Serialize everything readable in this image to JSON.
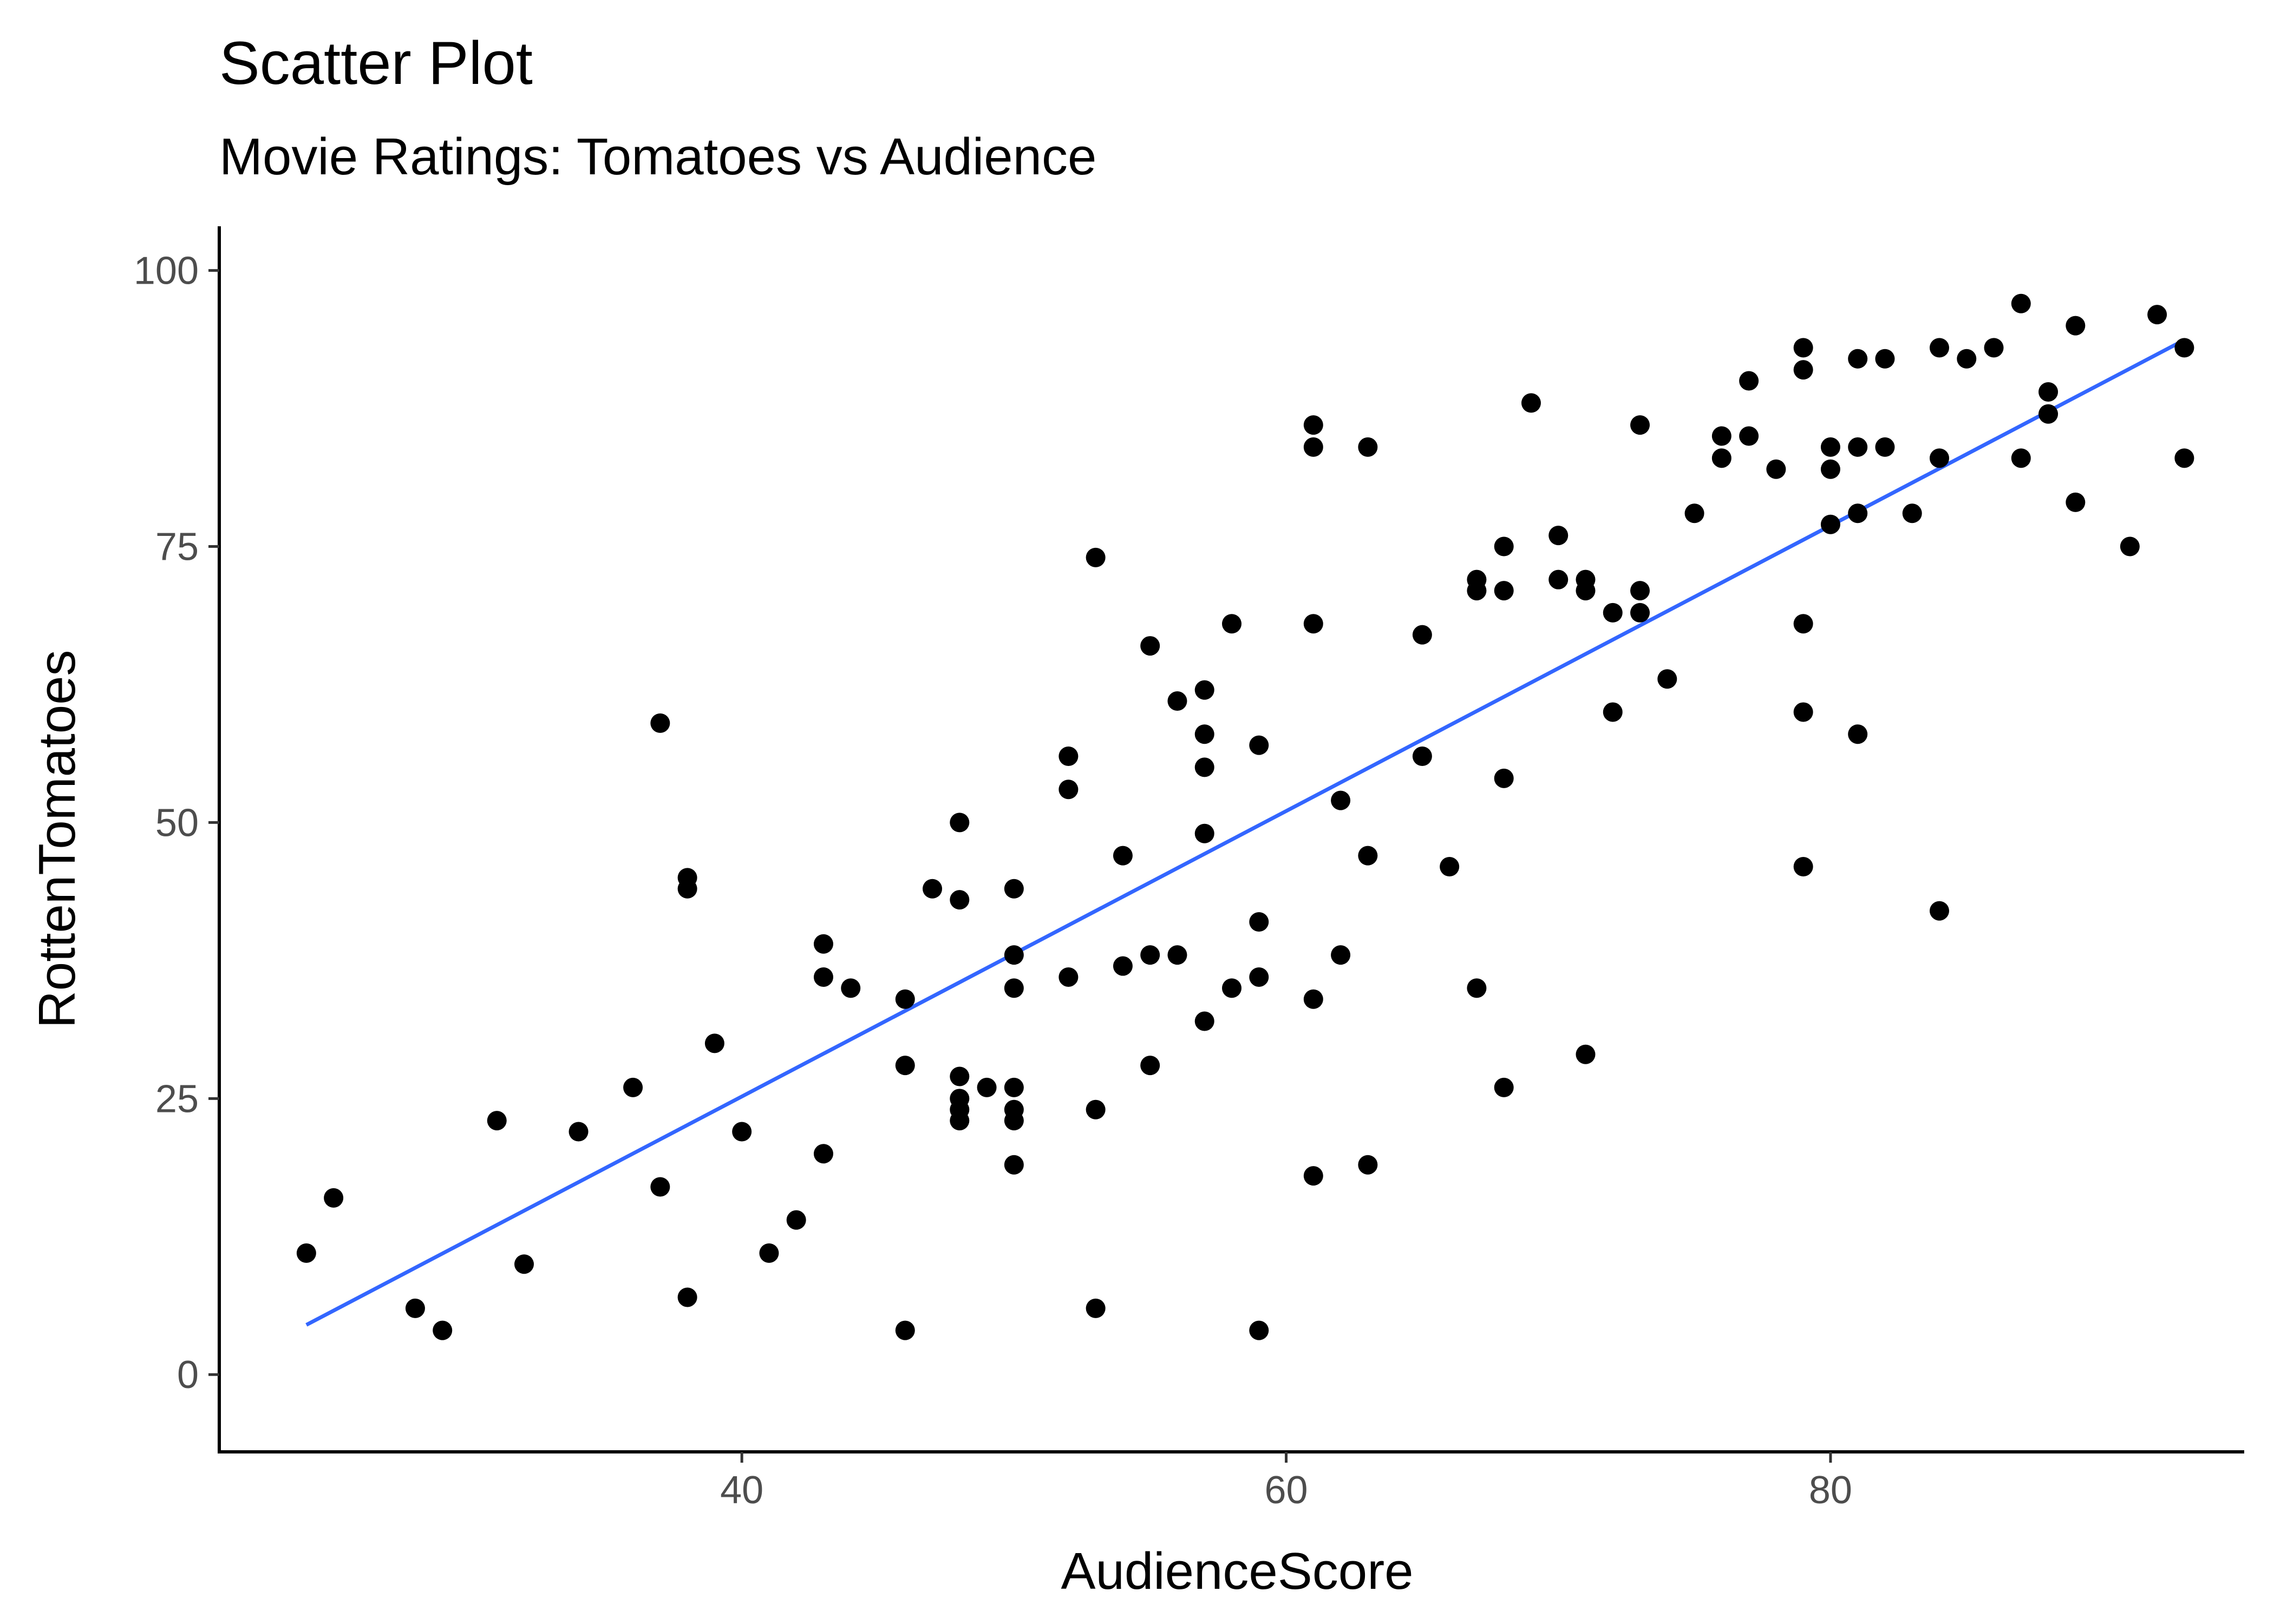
{
  "chart_data": {
    "type": "scatter",
    "title": "Scatter Plot",
    "subtitle": "Movie Ratings: Tomatoes vs Audience",
    "xlabel": "AudienceScore",
    "ylabel": "RottenTomatoes",
    "xlim": [
      20.8,
      95.2
    ],
    "ylim": [
      -7,
      104
    ],
    "xticks": [
      40,
      60,
      80
    ],
    "yticks": [
      0,
      25,
      50,
      75,
      100
    ],
    "grid": false,
    "legend": "none",
    "point_color": "#000000",
    "trendline": {
      "color": "#3366ff",
      "method": "linear",
      "start": {
        "x": 24,
        "y": 4.5
      },
      "end": {
        "x": 93,
        "y": 93.7
      }
    },
    "points": [
      {
        "x": 24,
        "y": 11
      },
      {
        "x": 25,
        "y": 16
      },
      {
        "x": 28,
        "y": 6
      },
      {
        "x": 29,
        "y": 4
      },
      {
        "x": 31,
        "y": 23
      },
      {
        "x": 32,
        "y": 10
      },
      {
        "x": 34,
        "y": 22
      },
      {
        "x": 36,
        "y": 26
      },
      {
        "x": 37,
        "y": 59
      },
      {
        "x": 37,
        "y": 17
      },
      {
        "x": 38,
        "y": 45
      },
      {
        "x": 38,
        "y": 44
      },
      {
        "x": 38,
        "y": 7
      },
      {
        "x": 39,
        "y": 30
      },
      {
        "x": 40,
        "y": 22
      },
      {
        "x": 41,
        "y": 11
      },
      {
        "x": 42,
        "y": 14
      },
      {
        "x": 43,
        "y": 39
      },
      {
        "x": 43,
        "y": 36
      },
      {
        "x": 43,
        "y": 20
      },
      {
        "x": 44,
        "y": 35
      },
      {
        "x": 46,
        "y": 34
      },
      {
        "x": 46,
        "y": 28
      },
      {
        "x": 46,
        "y": 4
      },
      {
        "x": 47,
        "y": 44
      },
      {
        "x": 48,
        "y": 50
      },
      {
        "x": 48,
        "y": 43
      },
      {
        "x": 48,
        "y": 27
      },
      {
        "x": 48,
        "y": 25
      },
      {
        "x": 48,
        "y": 24
      },
      {
        "x": 48,
        "y": 23
      },
      {
        "x": 49,
        "y": 26
      },
      {
        "x": 50,
        "y": 44
      },
      {
        "x": 50,
        "y": 38
      },
      {
        "x": 50,
        "y": 35
      },
      {
        "x": 50,
        "y": 26
      },
      {
        "x": 50,
        "y": 24
      },
      {
        "x": 50,
        "y": 23
      },
      {
        "x": 50,
        "y": 19
      },
      {
        "x": 52,
        "y": 56
      },
      {
        "x": 52,
        "y": 53
      },
      {
        "x": 52,
        "y": 36
      },
      {
        "x": 53,
        "y": 74
      },
      {
        "x": 53,
        "y": 24
      },
      {
        "x": 53,
        "y": 6
      },
      {
        "x": 54,
        "y": 47
      },
      {
        "x": 54,
        "y": 37
      },
      {
        "x": 55,
        "y": 66
      },
      {
        "x": 55,
        "y": 38
      },
      {
        "x": 55,
        "y": 28
      },
      {
        "x": 56,
        "y": 61
      },
      {
        "x": 56,
        "y": 38
      },
      {
        "x": 57,
        "y": 62
      },
      {
        "x": 57,
        "y": 58
      },
      {
        "x": 57,
        "y": 55
      },
      {
        "x": 57,
        "y": 49
      },
      {
        "x": 57,
        "y": 32
      },
      {
        "x": 58,
        "y": 68
      },
      {
        "x": 58,
        "y": 35
      },
      {
        "x": 59,
        "y": 57
      },
      {
        "x": 59,
        "y": 41
      },
      {
        "x": 59,
        "y": 36
      },
      {
        "x": 59,
        "y": 4
      },
      {
        "x": 61,
        "y": 86
      },
      {
        "x": 61,
        "y": 84
      },
      {
        "x": 61,
        "y": 68
      },
      {
        "x": 61,
        "y": 34
      },
      {
        "x": 61,
        "y": 18
      },
      {
        "x": 62,
        "y": 52
      },
      {
        "x": 62,
        "y": 38
      },
      {
        "x": 63,
        "y": 84
      },
      {
        "x": 63,
        "y": 47
      },
      {
        "x": 63,
        "y": 19
      },
      {
        "x": 65,
        "y": 67
      },
      {
        "x": 65,
        "y": 56
      },
      {
        "x": 66,
        "y": 46
      },
      {
        "x": 67,
        "y": 72
      },
      {
        "x": 67,
        "y": 71
      },
      {
        "x": 67,
        "y": 35
      },
      {
        "x": 68,
        "y": 75
      },
      {
        "x": 68,
        "y": 71
      },
      {
        "x": 68,
        "y": 54
      },
      {
        "x": 68,
        "y": 26
      },
      {
        "x": 69,
        "y": 88
      },
      {
        "x": 70,
        "y": 76
      },
      {
        "x": 70,
        "y": 72
      },
      {
        "x": 71,
        "y": 72
      },
      {
        "x": 71,
        "y": 71
      },
      {
        "x": 71,
        "y": 29
      },
      {
        "x": 72,
        "y": 69
      },
      {
        "x": 72,
        "y": 60
      },
      {
        "x": 73,
        "y": 86
      },
      {
        "x": 73,
        "y": 71
      },
      {
        "x": 73,
        "y": 69
      },
      {
        "x": 74,
        "y": 63
      },
      {
        "x": 75,
        "y": 78
      },
      {
        "x": 76,
        "y": 85
      },
      {
        "x": 76,
        "y": 83
      },
      {
        "x": 77,
        "y": 90
      },
      {
        "x": 77,
        "y": 85
      },
      {
        "x": 78,
        "y": 82
      },
      {
        "x": 79,
        "y": 93
      },
      {
        "x": 79,
        "y": 91
      },
      {
        "x": 79,
        "y": 68
      },
      {
        "x": 79,
        "y": 60
      },
      {
        "x": 79,
        "y": 46
      },
      {
        "x": 80,
        "y": 84
      },
      {
        "x": 80,
        "y": 82
      },
      {
        "x": 80,
        "y": 77
      },
      {
        "x": 81,
        "y": 92
      },
      {
        "x": 81,
        "y": 84
      },
      {
        "x": 81,
        "y": 78
      },
      {
        "x": 81,
        "y": 58
      },
      {
        "x": 82,
        "y": 92
      },
      {
        "x": 82,
        "y": 84
      },
      {
        "x": 83,
        "y": 78
      },
      {
        "x": 84,
        "y": 93
      },
      {
        "x": 84,
        "y": 83
      },
      {
        "x": 84,
        "y": 42
      },
      {
        "x": 85,
        "y": 92
      },
      {
        "x": 86,
        "y": 93
      },
      {
        "x": 87,
        "y": 97
      },
      {
        "x": 87,
        "y": 83
      },
      {
        "x": 88,
        "y": 89
      },
      {
        "x": 88,
        "y": 87
      },
      {
        "x": 89,
        "y": 95
      },
      {
        "x": 89,
        "y": 79
      },
      {
        "x": 91,
        "y": 75
      },
      {
        "x": 92,
        "y": 96
      },
      {
        "x": 93,
        "y": 93
      },
      {
        "x": 93,
        "y": 83
      }
    ]
  }
}
